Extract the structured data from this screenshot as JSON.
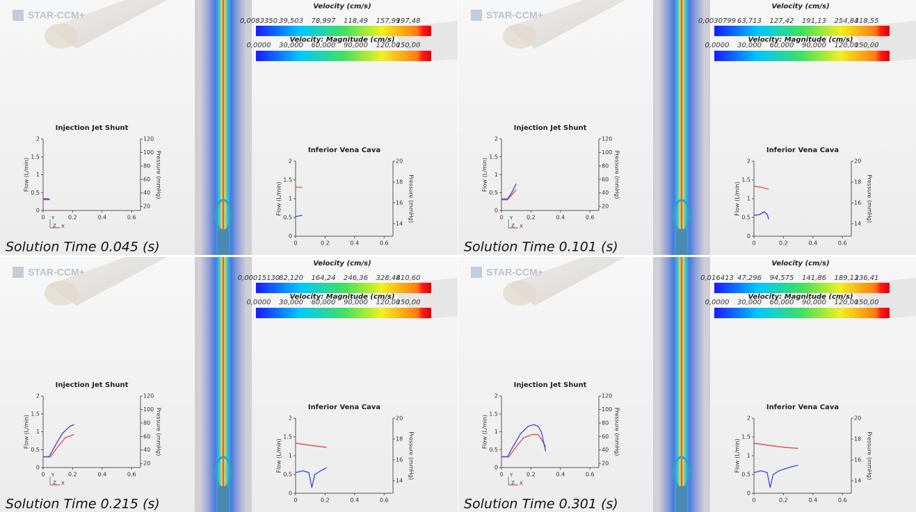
{
  "panels": [
    {
      "logo": "STAR-CCM+",
      "colorbars": [
        {
          "title": "Velocity (cm/s)",
          "labels": [
            "0,0083350",
            "39,503",
            "78,997",
            "118,49",
            "157,99",
            "197,48"
          ]
        },
        {
          "title": "Velocity: Magnitude (cm/s)",
          "labels": [
            "0,0000",
            "30,000",
            "60,000",
            "90,000",
            "120,00",
            "150,00"
          ]
        }
      ],
      "solution_time": "Solution Time 0.045 (s)",
      "triad": [
        "Y",
        "Z",
        "X"
      ],
      "charts": [
        {
          "type": "line",
          "title": "Injection Jet Shunt",
          "y_label": "Flow (L/min)",
          "y2_label": "Pressure (mmHg)",
          "xlim": [
            0,
            0.66
          ],
          "xticks": [
            0,
            0.2,
            0.4,
            0.6
          ],
          "ylim": [
            0,
            2
          ],
          "yticks": [
            0,
            0.5,
            1,
            1.5,
            2
          ],
          "y2lim": [
            14,
            120
          ],
          "y2ticks": [
            20,
            40,
            60,
            80,
            100,
            120
          ],
          "series": [
            {
              "color": "#e05050",
              "axis": "y2",
              "x": [
                0,
                0.045
              ],
              "values": [
                30,
                30
              ]
            },
            {
              "color": "#4050d8",
              "x": [
                0,
                0.045
              ],
              "values": [
                0.33,
                0.32
              ]
            }
          ]
        },
        {
          "type": "line",
          "title": "Inferior Vena Cava",
          "y_label": "Flow (L/min)",
          "y2_label": "Pressure (mmHg)",
          "xlim": [
            0,
            0.66
          ],
          "xticks": [
            0,
            0.2,
            0.4,
            0.6
          ],
          "ylim": [
            0,
            2
          ],
          "yticks": [
            0,
            0.5,
            1,
            1.5,
            2
          ],
          "y2lim": [
            12.8,
            20
          ],
          "y2ticks": [
            14,
            16,
            18,
            20
          ],
          "series": [
            {
              "color": "#e05050",
              "axis": "y2",
              "x": [
                0,
                0.045
              ],
              "values": [
                17.5,
                17.5
              ]
            },
            {
              "color": "#4050d8",
              "x": [
                0,
                0.045
              ],
              "values": [
                0.52,
                0.56
              ]
            }
          ]
        }
      ]
    },
    {
      "logo": "STAR-CCM+",
      "colorbars": [
        {
          "title": "Velocity (cm/s)",
          "labels": [
            "0,0030799",
            "63,713",
            "127,42",
            "191,13",
            "254,84",
            "318,55"
          ]
        },
        {
          "title": "Velocity: Magnitude (cm/s)",
          "labels": [
            "0,0000",
            "30,000",
            "60,000",
            "90,000",
            "120,00",
            "150,00"
          ]
        }
      ],
      "solution_time": "Solution Time 0.101 (s)",
      "triad": [
        "Y",
        "Z",
        "X"
      ],
      "charts": [
        {
          "type": "line",
          "title": "Injection Jet Shunt",
          "y_label": "Flow (L/min)",
          "y2_label": "Pressure (mmHg)",
          "xlim": [
            0,
            0.66
          ],
          "xticks": [
            0,
            0.2,
            0.4,
            0.6
          ],
          "ylim": [
            0,
            2
          ],
          "yticks": [
            0,
            0.5,
            1,
            1.5,
            2
          ],
          "y2lim": [
            14,
            120
          ],
          "y2ticks": [
            20,
            40,
            60,
            80,
            100,
            120
          ],
          "series": [
            {
              "color": "#e05050",
              "axis": "y2",
              "x": [
                0,
                0.04,
                0.07,
                0.1
              ],
              "values": [
                30,
                30,
                37,
                45
              ]
            },
            {
              "color": "#4050d8",
              "x": [
                0,
                0.04,
                0.07,
                0.1
              ],
              "values": [
                0.32,
                0.32,
                0.5,
                0.75
              ]
            }
          ]
        },
        {
          "type": "line",
          "title": "Inferior Vena Cava",
          "y_label": "Flow (L/min)",
          "y2_label": "Pressure (mmHg)",
          "xlim": [
            0,
            0.66
          ],
          "xticks": [
            0,
            0.2,
            0.4,
            0.6
          ],
          "ylim": [
            0,
            2
          ],
          "yticks": [
            0,
            0.5,
            1,
            1.5,
            2
          ],
          "y2lim": [
            12.8,
            20
          ],
          "y2ticks": [
            14,
            16,
            18,
            20
          ],
          "series": [
            {
              "color": "#e05050",
              "axis": "y2",
              "x": [
                0,
                0.05,
                0.1
              ],
              "values": [
                17.6,
                17.5,
                17.3
              ]
            },
            {
              "color": "#4050d8",
              "x": [
                0,
                0.04,
                0.07,
                0.09,
                0.1
              ],
              "values": [
                0.55,
                0.58,
                0.65,
                0.58,
                0.45
              ]
            }
          ]
        }
      ]
    },
    {
      "logo": "STAR-CCM+",
      "colorbars": [
        {
          "title": "Velocity (cm/s)",
          "labels": [
            "0,00015130",
            "82,120",
            "164,24",
            "246,36",
            "328,48",
            "410,60"
          ]
        },
        {
          "title": "Velocity: Magnitude (cm/s)",
          "labels": [
            "0,0000",
            "30,000",
            "60,000",
            "90,000",
            "120,00",
            "150,00"
          ]
        }
      ],
      "solution_time": "Solution Time 0.215 (s)",
      "triad": [
        "Y",
        "Z",
        "X"
      ],
      "charts": [
        {
          "type": "line",
          "title": "Injection Jet Shunt",
          "y_label": "Flow (L/min)",
          "y2_label": "Pressure (mmHg)",
          "xlim": [
            0,
            0.66
          ],
          "xticks": [
            0,
            0.2,
            0.4,
            0.6
          ],
          "ylim": [
            0,
            2
          ],
          "yticks": [
            0,
            0.5,
            1,
            1.5,
            2
          ],
          "y2lim": [
            14,
            120
          ],
          "y2ticks": [
            20,
            40,
            60,
            80,
            100,
            120
          ],
          "series": [
            {
              "color": "#e05050",
              "axis": "y2",
              "x": [
                0,
                0.05,
                0.1,
                0.15,
                0.21
              ],
              "values": [
                30,
                30,
                45,
                58,
                63
              ]
            },
            {
              "color": "#4050d8",
              "x": [
                0,
                0.04,
                0.08,
                0.13,
                0.18,
                0.21
              ],
              "values": [
                0.3,
                0.3,
                0.6,
                0.95,
                1.15,
                1.2
              ]
            }
          ]
        },
        {
          "type": "line",
          "title": "Inferior Vena Cava",
          "y_label": "Flow (L/min)",
          "y2_label": "Pressure (mmHg)",
          "xlim": [
            0,
            0.66
          ],
          "xticks": [
            0,
            0.2,
            0.4,
            0.6
          ],
          "ylim": [
            0,
            2
          ],
          "yticks": [
            0,
            0.5,
            1,
            1.5,
            2
          ],
          "y2lim": [
            12.8,
            20
          ],
          "y2ticks": [
            14,
            16,
            18,
            20
          ],
          "series": [
            {
              "color": "#e05050",
              "axis": "y2",
              "x": [
                0,
                0.1,
                0.21
              ],
              "values": [
                17.6,
                17.4,
                17.2
              ]
            },
            {
              "color": "#4050d8",
              "x": [
                0,
                0.05,
                0.09,
                0.11,
                0.13,
                0.17,
                0.21
              ],
              "values": [
                0.55,
                0.6,
                0.55,
                0.15,
                0.5,
                0.6,
                0.68
              ]
            }
          ]
        }
      ]
    },
    {
      "logo": "STAR-CCM+",
      "colorbars": [
        {
          "title": "Velocity (cm/s)",
          "labels": [
            "0,016413",
            "47,296",
            "94,575",
            "141,86",
            "189,13",
            "236,41"
          ]
        },
        {
          "title": "Velocity: Magnitude (cm/s)",
          "labels": [
            "0,0000",
            "30,000",
            "60,000",
            "90,000",
            "120,00",
            "150,00"
          ]
        }
      ],
      "solution_time": "Solution Time 0.301 (s)",
      "triad": [
        "Y",
        "Z",
        "X"
      ],
      "charts": [
        {
          "type": "line",
          "title": "Injection Jet Shunt",
          "y_label": "Flow (L/min)",
          "y2_label": "Pressure (mmHg)",
          "xlim": [
            0,
            0.66
          ],
          "xticks": [
            0,
            0.2,
            0.4,
            0.6
          ],
          "ylim": [
            0,
            2
          ],
          "yticks": [
            0,
            0.5,
            1,
            1.5,
            2
          ],
          "y2lim": [
            14,
            120
          ],
          "y2ticks": [
            20,
            40,
            60,
            80,
            100,
            120
          ],
          "series": [
            {
              "color": "#e05050",
              "axis": "y2",
              "x": [
                0,
                0.05,
                0.1,
                0.15,
                0.21,
                0.25,
                0.3
              ],
              "values": [
                30,
                30,
                45,
                58,
                63,
                63,
                45
              ]
            },
            {
              "color": "#4050d8",
              "x": [
                0,
                0.04,
                0.08,
                0.13,
                0.18,
                0.22,
                0.25,
                0.27,
                0.3
              ],
              "values": [
                0.3,
                0.3,
                0.6,
                0.95,
                1.15,
                1.2,
                1.15,
                1.0,
                0.45
              ]
            }
          ]
        },
        {
          "type": "line",
          "title": "Inferior Vena Cava",
          "y_label": "Flow (L/min)",
          "y2_label": "Pressure (mmHg)",
          "xlim": [
            0,
            0.66
          ],
          "xticks": [
            0,
            0.2,
            0.4,
            0.6
          ],
          "ylim": [
            0,
            2
          ],
          "yticks": [
            0,
            0.5,
            1,
            1.5,
            2
          ],
          "y2lim": [
            12.8,
            20
          ],
          "y2ticks": [
            14,
            16,
            18,
            20
          ],
          "series": [
            {
              "color": "#e05050",
              "axis": "y2",
              "x": [
                0,
                0.1,
                0.21,
                0.3
              ],
              "values": [
                17.6,
                17.4,
                17.2,
                17.1
              ]
            },
            {
              "color": "#4050d8",
              "x": [
                0,
                0.05,
                0.09,
                0.11,
                0.13,
                0.17,
                0.21,
                0.25,
                0.3
              ],
              "values": [
                0.55,
                0.6,
                0.55,
                0.15,
                0.5,
                0.6,
                0.65,
                0.7,
                0.75
              ]
            }
          ]
        }
      ]
    }
  ]
}
